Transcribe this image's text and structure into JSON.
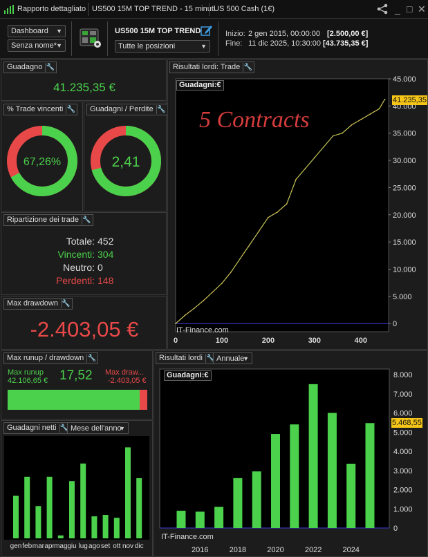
{
  "tabs": {
    "t1": "Rapporto dettagliato",
    "t2": "US500 15M TOP TREND - 15 minuti",
    "t3": "US 500 Cash (1€)"
  },
  "toolbar": {
    "dashboard": "Dashboard",
    "name": "Senza nome*",
    "strategy": "US500 15M TOP TREND",
    "positions": "Tutte le posizioni",
    "start_label": "Inizio:",
    "start_date": "2 gen 2015, 00:00:00",
    "start_value": "[2.500,00 €]",
    "end_label": "Fine:",
    "end_date": "11 dic 2025, 10:30:00",
    "end_value": "[43.735,35 €]"
  },
  "gain": {
    "title": "Guadagno",
    "value": "41.235,35 €"
  },
  "winpct": {
    "title": "% Trade vincenti",
    "value": "67,26%",
    "fraction": 0.6726
  },
  "profitloss": {
    "title": "Guadagni / Perdite",
    "value": "2,41",
    "fraction": 0.707
  },
  "breakdown": {
    "title": "Ripartizione dei trade",
    "total_label": "Totale:",
    "total": "452",
    "win_label": "Vincenti:",
    "win": "304",
    "neutral_label": "Neutro:",
    "neutral": "0",
    "lose_label": "Perdenti:",
    "lose": "148"
  },
  "drawdown": {
    "title": "Max drawdown",
    "value": "-2.403,05 €"
  },
  "runup": {
    "title": "Max runup / drawdown",
    "runup_label": "Max runup",
    "runup_value": "42.106,65 €",
    "ratio": "17,52",
    "dd_label": "Max draw...",
    "dd_value": "-2.403,05 €",
    "fraction": 0.946
  },
  "netgain": {
    "title": "Guadagni netti",
    "mode": "Mese dell'anno"
  },
  "colors": {
    "green": "#4cd14c",
    "red": "#e84848",
    "gold": "#f5c518"
  },
  "icons": [
    "share-icon",
    "minimize-icon",
    "maximize-icon",
    "close-icon",
    "signal-bars-icon",
    "strategy-icon",
    "edit-icon",
    "wrench-icon",
    "dropdown-arrow-icon"
  ],
  "chart_data": [
    {
      "type": "line",
      "panel": "Risultati lordi: Trade",
      "badge": "Guadagni:€",
      "watermark": "IT-Finance.com",
      "annotation": "5 Contracts",
      "xlim": [
        0,
        460
      ],
      "ylim": [
        -1500,
        45000
      ],
      "xticks": [
        "0",
        "100",
        "200",
        "300",
        "400"
      ],
      "yticks": [
        "0",
        "5.000",
        "10.000",
        "15.000",
        "20.000",
        "25.000",
        "30.000",
        "35.000",
        "40.000",
        "45.000"
      ],
      "last_value": "41.235,35",
      "x": [
        0,
        20,
        40,
        60,
        80,
        100,
        120,
        140,
        160,
        180,
        200,
        220,
        240,
        260,
        280,
        300,
        320,
        340,
        360,
        380,
        400,
        420,
        440,
        452
      ],
      "y": [
        0,
        1500,
        2800,
        4200,
        5800,
        7400,
        9500,
        12000,
        14500,
        17000,
        19500,
        20500,
        22000,
        26500,
        28500,
        30500,
        32500,
        34500,
        35000,
        36500,
        37500,
        38500,
        39500,
        41235
      ]
    },
    {
      "type": "bar",
      "panel": "Risultati lordi",
      "mode": "Annuale",
      "badge": "Guadagni:€",
      "watermark": "IT-Finance.com",
      "categories": [
        "2015",
        "2016",
        "2017",
        "2018",
        "2019",
        "2020",
        "2021",
        "2022",
        "2023",
        "2024",
        "2025"
      ],
      "xticks": [
        "2016",
        "2018",
        "2020",
        "2022",
        "2024"
      ],
      "values": [
        900,
        850,
        1100,
        2600,
        2950,
        4900,
        5400,
        7500,
        6000,
        3350,
        5468.55
      ],
      "ylim": [
        0,
        8000
      ],
      "yticks": [
        "0",
        "1.000",
        "2.000",
        "3.000",
        "4.000",
        "5.000",
        "6.000",
        "7.000",
        "8.000"
      ],
      "last_value": "5.468,55"
    },
    {
      "type": "bar",
      "panel": "Guadagni netti",
      "categories": [
        "gen",
        "feb",
        "mar",
        "apr",
        "mag",
        "giu",
        "lug",
        "ago",
        "set",
        "ott",
        "nov",
        "dic"
      ],
      "values": [
        2900,
        4200,
        2200,
        4200,
        200,
        3900,
        5100,
        1500,
        1600,
        1400,
        6200,
        4100
      ]
    }
  ]
}
